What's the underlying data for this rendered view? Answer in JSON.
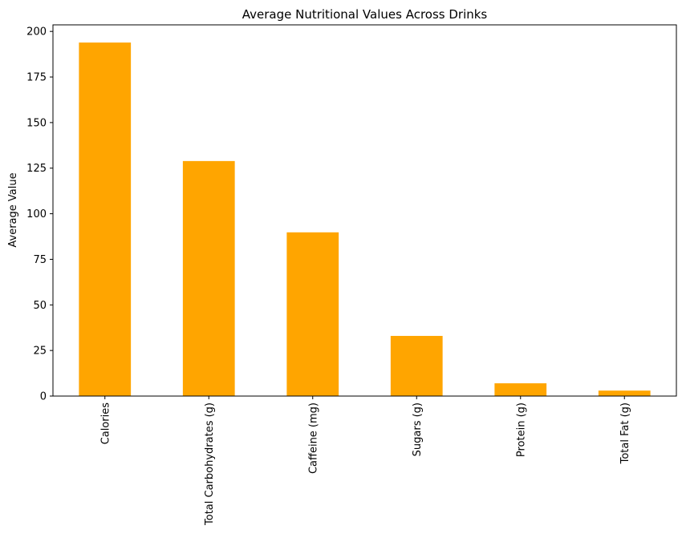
{
  "chart_data": {
    "type": "bar",
    "title": "Average Nutritional Values Across Drinks",
    "xlabel": "",
    "ylabel": "Average Value",
    "categories": [
      "Calories",
      "Total Carbohydrates (g)",
      "Caffeine (mg)",
      "Sugars (g)",
      "Protein (g)",
      "Total Fat (g)"
    ],
    "values": [
      193.9,
      128.9,
      89.8,
      33,
      7,
      3
    ],
    "ylim": [
      0,
      203.6
    ],
    "yticks": [
      0,
      25,
      50,
      75,
      100,
      125,
      150,
      175,
      200
    ],
    "bar_color": "#ffa500",
    "grid": false,
    "legend": "none"
  }
}
